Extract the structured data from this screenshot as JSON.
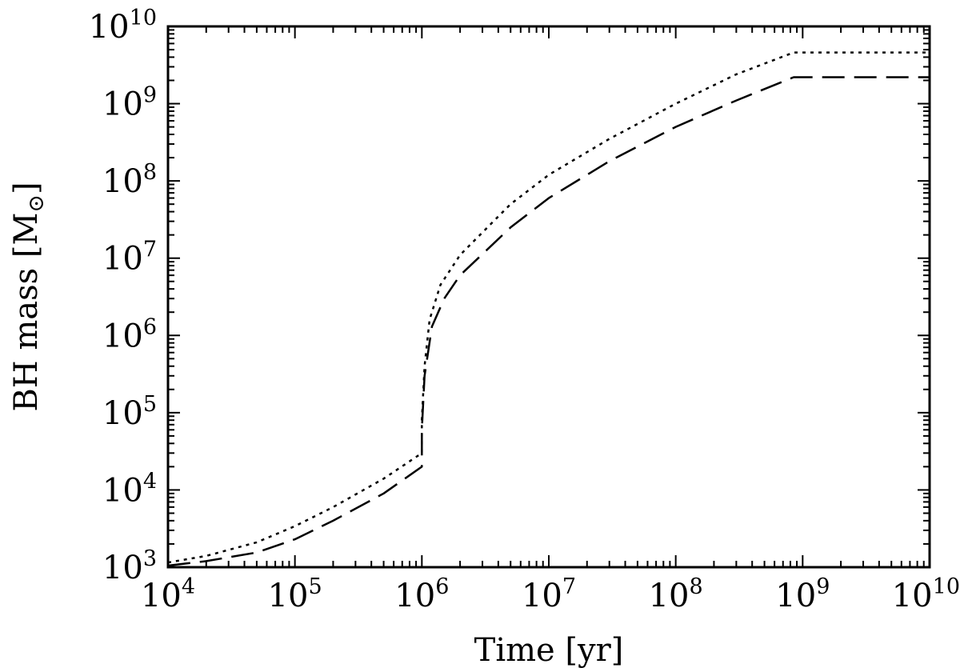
{
  "chart_data": {
    "type": "line",
    "xlabel": "Time [yr]",
    "ylabel": "BH mass [M",
    "ylabel_symbol": "⊙",
    "ylabel_close": "]",
    "x_scale": "log",
    "y_scale": "log",
    "xlim": [
      10000,
      10000000000
    ],
    "ylim": [
      1000,
      10000000000
    ],
    "grid": false,
    "x_ticks": [
      {
        "base": "10",
        "exp": "4"
      },
      {
        "base": "10",
        "exp": "5"
      },
      {
        "base": "10",
        "exp": "6"
      },
      {
        "base": "10",
        "exp": "7"
      },
      {
        "base": "10",
        "exp": "8"
      },
      {
        "base": "10",
        "exp": "9"
      },
      {
        "base": "10",
        "exp": "10"
      }
    ],
    "y_ticks": [
      {
        "base": "10",
        "exp": "3"
      },
      {
        "base": "10",
        "exp": "4"
      },
      {
        "base": "10",
        "exp": "5"
      },
      {
        "base": "10",
        "exp": "6"
      },
      {
        "base": "10",
        "exp": "7"
      },
      {
        "base": "10",
        "exp": "8"
      },
      {
        "base": "10",
        "exp": "9"
      },
      {
        "base": "10",
        "exp": "10"
      }
    ],
    "series": [
      {
        "style": "dotted",
        "color": "#000000",
        "points": [
          [
            10000,
            1150
          ],
          [
            20000,
            1400
          ],
          [
            50000,
            2100
          ],
          [
            100000,
            3400
          ],
          [
            200000,
            6000
          ],
          [
            500000,
            14000
          ],
          [
            1000000,
            30000
          ],
          [
            1000000,
            80000
          ],
          [
            1050000,
            400000
          ],
          [
            1150000,
            1600000
          ],
          [
            1400000,
            4500000
          ],
          [
            2000000,
            11000000
          ],
          [
            5000000,
            50000000
          ],
          [
            10000000,
            120000000
          ],
          [
            30000000,
            350000000
          ],
          [
            100000000,
            1000000000
          ],
          [
            300000000,
            2400000000
          ],
          [
            850000000,
            4600000000
          ],
          [
            10000000000,
            4600000000
          ]
        ]
      },
      {
        "style": "dashed",
        "color": "#000000",
        "points": [
          [
            10000,
            1050
          ],
          [
            20000,
            1200
          ],
          [
            50000,
            1550
          ],
          [
            100000,
            2300
          ],
          [
            200000,
            4000
          ],
          [
            500000,
            9000
          ],
          [
            1000000,
            20000
          ],
          [
            1000000,
            60000
          ],
          [
            1050000,
            300000
          ],
          [
            1200000,
            1300000
          ],
          [
            1500000,
            3000000
          ],
          [
            2000000,
            6000000
          ],
          [
            5000000,
            25000000
          ],
          [
            10000000,
            60000000
          ],
          [
            30000000,
            180000000
          ],
          [
            100000000,
            500000000
          ],
          [
            300000000,
            1100000000
          ],
          [
            850000000,
            2200000000
          ],
          [
            10000000000,
            2200000000
          ]
        ]
      }
    ]
  }
}
